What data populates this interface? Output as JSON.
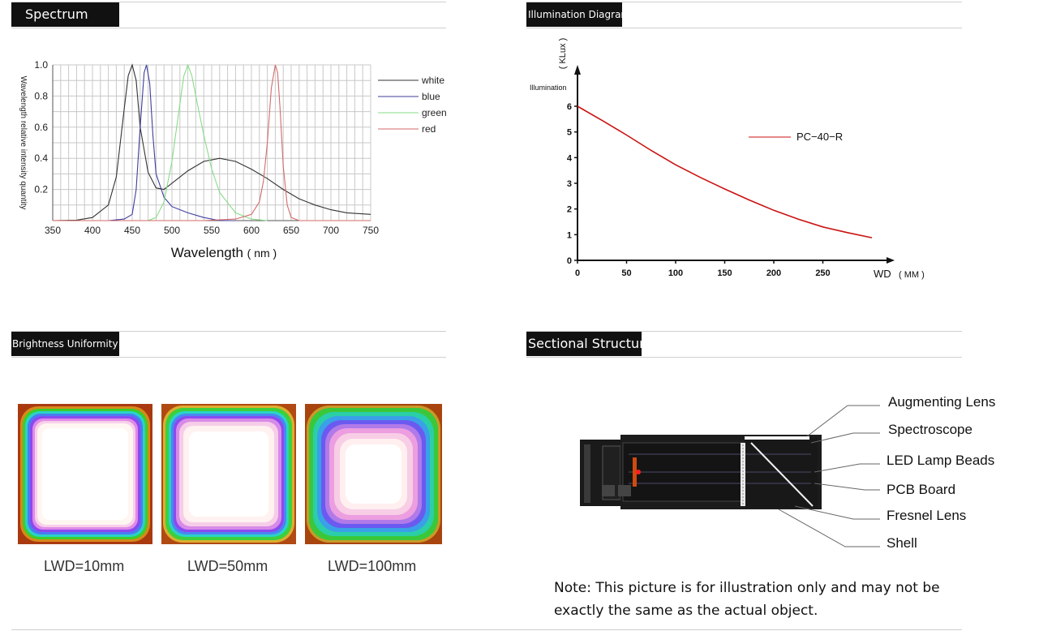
{
  "sections": {
    "spectrum": "Spectrum",
    "illumination": "Illumination Diagram",
    "uniformity": "Brightness Uniformity",
    "structure": "Sectional Structure"
  },
  "chart_data": [
    {
      "type": "line",
      "title": "",
      "xlabel": "Wavelength",
      "xlabel_unit": "( nm )",
      "ylabel": "Wavelength relative intensity quantity",
      "xlim": [
        350,
        750
      ],
      "ylim": [
        0,
        1.0
      ],
      "x_ticks": [
        "350",
        "400",
        "450",
        "500",
        "550",
        "600",
        "650",
        "700",
        "750"
      ],
      "y_ticks": [
        "0.2",
        "0.4",
        "0.6",
        "0.8",
        "1.0"
      ],
      "grid": true,
      "legend_position": "right",
      "series": [
        {
          "name": "white",
          "color": "#333333",
          "x": [
            350,
            380,
            400,
            420,
            430,
            440,
            445,
            450,
            455,
            460,
            470,
            480,
            490,
            500,
            520,
            540,
            560,
            580,
            600,
            620,
            640,
            660,
            680,
            700,
            720,
            750
          ],
          "y": [
            0.0,
            0.003,
            0.02,
            0.1,
            0.28,
            0.72,
            0.93,
            1.0,
            0.9,
            0.6,
            0.31,
            0.21,
            0.2,
            0.24,
            0.32,
            0.38,
            0.4,
            0.38,
            0.33,
            0.27,
            0.2,
            0.14,
            0.1,
            0.07,
            0.05,
            0.04
          ]
        },
        {
          "name": "blue",
          "color": "#3d3d9e",
          "x": [
            350,
            420,
            440,
            450,
            455,
            460,
            465,
            468,
            472,
            476,
            480,
            490,
            500,
            520,
            540,
            560,
            580
          ],
          "y": [
            0.0,
            0.0,
            0.01,
            0.04,
            0.2,
            0.6,
            0.95,
            1.0,
            0.88,
            0.55,
            0.3,
            0.15,
            0.09,
            0.05,
            0.02,
            0.0,
            0.0
          ]
        },
        {
          "name": "green",
          "color": "#88dd88",
          "x": [
            350,
            470,
            480,
            490,
            500,
            510,
            515,
            520,
            525,
            530,
            540,
            550,
            560,
            580,
            600,
            620
          ],
          "y": [
            0.0,
            0.0,
            0.02,
            0.12,
            0.38,
            0.75,
            0.93,
            1.0,
            0.93,
            0.8,
            0.55,
            0.33,
            0.18,
            0.05,
            0.01,
            0.0
          ]
        },
        {
          "name": "red",
          "color": "#d46a6a",
          "x": [
            350,
            540,
            580,
            600,
            610,
            615,
            620,
            625,
            630,
            633,
            636,
            640,
            645,
            650,
            660,
            750
          ],
          "y": [
            0.0,
            0.0,
            0.01,
            0.04,
            0.12,
            0.25,
            0.5,
            0.85,
            1.0,
            0.95,
            0.72,
            0.35,
            0.1,
            0.02,
            0.0,
            0.0
          ]
        }
      ]
    },
    {
      "type": "line",
      "title": "",
      "xlabel": "WD",
      "xlabel_unit": "( MM )",
      "ylabel": "Illumination",
      "ylabel_unit": "( KLux )",
      "xlim": [
        0,
        300
      ],
      "ylim": [
        0,
        6
      ],
      "x_ticks": [
        "0",
        "50",
        "100",
        "150",
        "200",
        "250"
      ],
      "y_ticks": [
        "0",
        "1",
        "2",
        "3",
        "4",
        "5",
        "6"
      ],
      "grid": false,
      "legend_position": "right",
      "series": [
        {
          "name": "PC−40−R",
          "color": "#cc1111",
          "x": [
            0,
            25,
            50,
            75,
            100,
            125,
            150,
            175,
            200,
            225,
            250,
            275,
            300
          ],
          "y": [
            6.0,
            5.45,
            4.88,
            4.28,
            3.72,
            3.23,
            2.78,
            2.35,
            1.95,
            1.6,
            1.3,
            1.08,
            0.88
          ]
        }
      ]
    }
  ],
  "uniformity": {
    "captions": [
      "LWD=10mm",
      "LWD=50mm",
      "LWD=100mm"
    ]
  },
  "structure": {
    "labels": [
      "Augmenting Lens",
      "Spectroscope",
      "LED Lamp Beads",
      "PCB Board",
      "Fresnel Lens",
      "Shell"
    ],
    "note": "Note: This picture is for illustration only and may not be exactly the same as the actual object."
  }
}
